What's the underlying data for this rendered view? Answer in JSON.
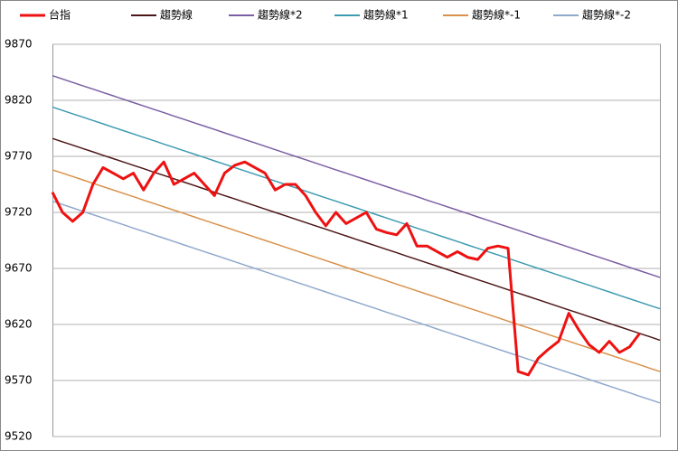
{
  "chart_data": {
    "type": "line",
    "categories": [
      null,
      null,
      null,
      null,
      null,
      null,
      null,
      null,
      null,
      null,
      null,
      null,
      null,
      null,
      null,
      null,
      null,
      null,
      null,
      null,
      null,
      null,
      null,
      null,
      null,
      null,
      null,
      null,
      null,
      null,
      null,
      null,
      null,
      null,
      null,
      null,
      null,
      null,
      null,
      null,
      null,
      null,
      null,
      null,
      null,
      null,
      null,
      null,
      null,
      null,
      null,
      null,
      null,
      null,
      null,
      null,
      null,
      null,
      null,
      null,
      null
    ],
    "ylim": [
      9520,
      9870
    ],
    "yticks": [
      9520,
      9570,
      9620,
      9670,
      9720,
      9770,
      9820,
      9870
    ],
    "grid": true,
    "legend": "top",
    "series": [
      {
        "name": "台指",
        "color": "#ee1111",
        "values": [
          9738,
          9720,
          9712,
          9720,
          9745,
          9760,
          9755,
          9750,
          9755,
          9740,
          9755,
          9765,
          9745,
          9750,
          9755,
          9745,
          9735,
          9755,
          9762,
          9765,
          9760,
          9755,
          9740,
          9745,
          9745,
          9735,
          9720,
          9708,
          9720,
          9710,
          9715,
          9720,
          9705,
          9702,
          9700,
          9710,
          9690,
          9690,
          9685,
          9680,
          9685,
          9680,
          9678,
          9688,
          9690,
          9688,
          9578,
          9575,
          9590,
          9598,
          9605,
          9630,
          9615,
          9602,
          9595,
          9605,
          9595,
          9600,
          9612,
          null,
          null
        ]
      },
      {
        "name": "趨勢線",
        "color": "#4d1616",
        "values": [
          9786,
          9783,
          9780,
          9777,
          9774,
          9771,
          9768,
          9765,
          9762,
          9759,
          9756,
          9753,
          9750,
          9747,
          9744,
          9741,
          9738,
          9735,
          9732,
          9729,
          9726,
          9723,
          9720,
          9717,
          9714,
          9711,
          9708,
          9705,
          9702,
          9699,
          9696,
          9693,
          9690,
          9687,
          9684,
          9681,
          9678,
          9675,
          9672,
          9669,
          9666,
          9663,
          9660,
          9657,
          9654,
          9651,
          9648,
          9645,
          9642,
          9639,
          9636,
          9633,
          9630,
          9627,
          9624,
          9621,
          9618,
          9615,
          9612,
          9609,
          9606
        ]
      },
      {
        "name": "趨勢線*2",
        "color": "#7b5ea3",
        "values": [
          9842,
          9839,
          9836,
          9833,
          9830,
          9827,
          9824,
          9821,
          9818,
          9815,
          9812,
          9809,
          9806,
          9803,
          9800,
          9797,
          9794,
          9791,
          9788,
          9785,
          9782,
          9779,
          9776,
          9773,
          9770,
          9767,
          9764,
          9761,
          9758,
          9755,
          9752,
          9749,
          9746,
          9743,
          9740,
          9737,
          9734,
          9731,
          9728,
          9725,
          9722,
          9719,
          9716,
          9713,
          9710,
          9707,
          9704,
          9701,
          9698,
          9695,
          9692,
          9689,
          9686,
          9683,
          9680,
          9677,
          9674,
          9671,
          9668,
          9665,
          9662
        ]
      },
      {
        "name": "趨勢線*1",
        "color": "#3d9bb0",
        "values": [
          9814,
          9811,
          9808,
          9805,
          9802,
          9799,
          9796,
          9793,
          9790,
          9787,
          9784,
          9781,
          9778,
          9775,
          9772,
          9769,
          9766,
          9763,
          9760,
          9757,
          9754,
          9751,
          9748,
          9745,
          9742,
          9739,
          9736,
          9733,
          9730,
          9727,
          9724,
          9721,
          9718,
          9715,
          9712,
          9709,
          9706,
          9703,
          9700,
          9697,
          9694,
          9691,
          9688,
          9685,
          9682,
          9679,
          9676,
          9673,
          9670,
          9667,
          9664,
          9661,
          9658,
          9655,
          9652,
          9649,
          9646,
          9643,
          9640,
          9637,
          9634
        ]
      },
      {
        "name": "趨勢線*-1",
        "color": "#d9904a",
        "values": [
          9758,
          9755,
          9752,
          9749,
          9746,
          9743,
          9740,
          9737,
          9734,
          9731,
          9728,
          9725,
          9722,
          9719,
          9716,
          9713,
          9710,
          9707,
          9704,
          9701,
          9698,
          9695,
          9692,
          9689,
          9686,
          9683,
          9680,
          9677,
          9674,
          9671,
          9668,
          9665,
          9662,
          9659,
          9656,
          9653,
          9650,
          9647,
          9644,
          9641,
          9638,
          9635,
          9632,
          9629,
          9626,
          9623,
          9620,
          9617,
          9614,
          9611,
          9608,
          9605,
          9602,
          9599,
          9596,
          9593,
          9590,
          9587,
          9584,
          9581,
          9578
        ]
      },
      {
        "name": "趨勢線*-2",
        "color": "#8fa8cc",
        "values": [
          9730,
          9727,
          9724,
          9721,
          9718,
          9715,
          9712,
          9709,
          9706,
          9703,
          9700,
          9697,
          9694,
          9691,
          9688,
          9685,
          9682,
          9679,
          9676,
          9673,
          9670,
          9667,
          9664,
          9661,
          9658,
          9655,
          9652,
          9649,
          9646,
          9643,
          9640,
          9637,
          9634,
          9631,
          9628,
          9625,
          9622,
          9619,
          9616,
          9613,
          9610,
          9607,
          9604,
          9601,
          9598,
          9595,
          9592,
          9589,
          9586,
          9583,
          9580,
          9577,
          9574,
          9571,
          9568,
          9565,
          9562,
          9559,
          9556,
          9553,
          9550
        ]
      }
    ]
  }
}
